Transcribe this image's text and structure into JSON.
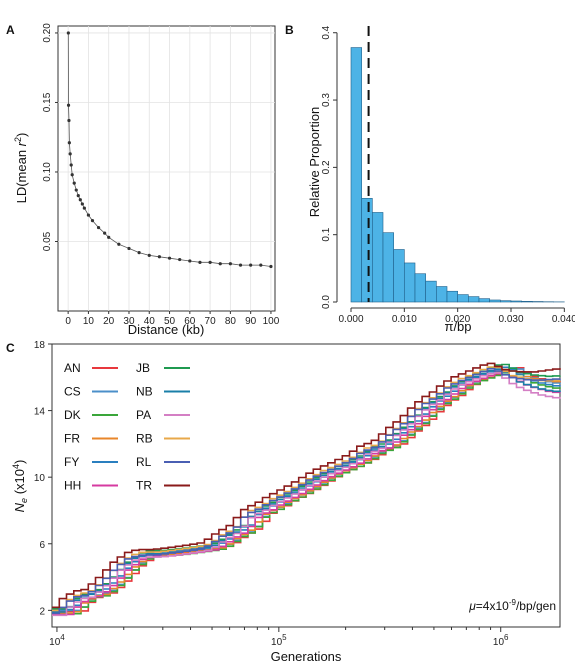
{
  "panels": {
    "A": {
      "letter": "A",
      "chart_data": {
        "type": "scatter",
        "title": "",
        "xlabel": "Distance (kb)",
        "ylabel": "LD(mean r²)",
        "ylabel_prefix": "LD(mean ",
        "ylabel_r": "r",
        "ylabel_sup": "2",
        "ylabel_suffix": ")",
        "xlim": [
          -5,
          102
        ],
        "ylim": [
          0.0,
          0.205
        ],
        "xticks": [
          0,
          10,
          20,
          30,
          40,
          50,
          60,
          70,
          80,
          90,
          100
        ],
        "xtick_labels": [
          "0",
          "10",
          "20",
          "30",
          "40",
          "50",
          "60",
          "70",
          "80",
          "90",
          "100"
        ],
        "yticks": [
          0.05,
          0.1,
          0.15,
          0.2
        ],
        "ytick_labels": [
          "0.05",
          "0.10",
          "0.15",
          "0.20"
        ],
        "grid": true,
        "series": [
          {
            "x": [
              0.1,
              0.2,
              0.4,
              0.6,
              1.0,
              1.5,
              2.0,
              3.0,
              4.0,
              5.0,
              6.0,
              7.0,
              8.0,
              10.0,
              12.0,
              15.0,
              18.0,
              20.0,
              25.0,
              30.0,
              35.0,
              40.0,
              45.0,
              50.0,
              55.0,
              60.0,
              65.0,
              70.0,
              75.0,
              80.0,
              85.0,
              90.0,
              95.0,
              100.0
            ],
            "y": [
              0.2,
              0.148,
              0.137,
              0.121,
              0.113,
              0.105,
              0.098,
              0.092,
              0.087,
              0.083,
              0.08,
              0.077,
              0.074,
              0.069,
              0.065,
              0.06,
              0.056,
              0.053,
              0.048,
              0.045,
              0.042,
              0.04,
              0.039,
              0.038,
              0.037,
              0.036,
              0.035,
              0.035,
              0.034,
              0.034,
              0.033,
              0.033,
              0.033,
              0.032
            ],
            "color": "#333333"
          }
        ],
        "annotations": []
      }
    },
    "B": {
      "letter": "B",
      "chart_data": {
        "type": "bar",
        "title": "",
        "xlabel": "π/bp",
        "ylabel": "Relative Proportion",
        "xlim": [
          -0.0015,
          0.0405
        ],
        "ylim": [
          0.0,
          0.41
        ],
        "xticks": [
          0.0,
          0.01,
          0.02,
          0.03,
          0.04
        ],
        "xtick_labels": [
          "0.000",
          "0.010",
          "0.020",
          "0.030",
          "0.040"
        ],
        "yticks": [
          0.0,
          0.1,
          0.2,
          0.3,
          0.4
        ],
        "ytick_labels": [
          "0.0",
          "0.1",
          "0.2",
          "0.3",
          "0.4"
        ],
        "grid": false,
        "bin_width": 0.002,
        "bin_starts": [
          0.0,
          0.002,
          0.004,
          0.006,
          0.008,
          0.01,
          0.012,
          0.014,
          0.016,
          0.018,
          0.02,
          0.022,
          0.024,
          0.026,
          0.028,
          0.03,
          0.032,
          0.034,
          0.036,
          0.038
        ],
        "values": [
          0.378,
          0.154,
          0.133,
          0.103,
          0.078,
          0.058,
          0.042,
          0.031,
          0.023,
          0.016,
          0.011,
          0.008,
          0.005,
          0.003,
          0.002,
          0.0015,
          0.001,
          0.0007,
          0.0004,
          0.0002
        ],
        "bar_color": "#4db3e6",
        "bar_edge": "#1f5f8a",
        "vline": {
          "x": 0.0033,
          "style": "dashed",
          "color": "#111111"
        }
      }
    },
    "C": {
      "letter": "C",
      "chart_data": {
        "type": "line",
        "title": "",
        "xlabel": "Generations",
        "ylabel": "Ne (×10⁴)",
        "ylabel_n": "N",
        "ylabel_sub": "e",
        "ylabel_mid": " (x10",
        "ylabel_sup": "4",
        "ylabel_end": ")",
        "xscale": "log",
        "xlim": [
          9500,
          1850000
        ],
        "ylim": [
          1.0,
          18.0
        ],
        "xticks": [
          10000,
          100000,
          1000000
        ],
        "xtick_base": "10",
        "xtick_exps": [
          "4",
          "5",
          "6"
        ],
        "yticks": [
          2,
          6,
          10,
          14,
          18
        ],
        "ytick_labels": [
          "2",
          "6",
          "10",
          "14",
          "18"
        ],
        "grid": false,
        "annotation": {
          "mu": "μ",
          "eq": "=4x10",
          "sup": "-9",
          "rest": "/bp/gen"
        },
        "base_curve": {
          "x": [
            9500,
            11000,
            12000,
            13500,
            15000,
            17000,
            18500,
            20000,
            23000,
            26000,
            30000,
            35000,
            40000,
            45000,
            50000,
            55000,
            60000,
            65000,
            70000,
            75000,
            80000,
            90000,
            100000,
            115000,
            130000,
            150000,
            170000,
            200000,
            230000,
            260000,
            300000,
            350000,
            400000,
            450000,
            500000,
            560000,
            620000,
            700000,
            800000,
            900000,
            1000000,
            1200000,
            1400000,
            1600000,
            1850000
          ],
          "y": [
            1.9,
            1.9,
            2.5,
            2.9,
            3.0,
            3.6,
            4.1,
            4.6,
            5.2,
            5.4,
            5.4,
            5.5,
            5.6,
            5.7,
            5.8,
            6.1,
            6.5,
            6.7,
            7.0,
            7.6,
            7.9,
            8.2,
            8.6,
            9.0,
            9.4,
            9.9,
            10.3,
            10.7,
            11.1,
            11.6,
            11.9,
            12.7,
            13.3,
            14.0,
            14.5,
            14.9,
            15.4,
            15.8,
            16.1,
            16.4,
            16.6,
            16.0,
            15.8,
            15.7,
            15.7
          ]
        },
        "series": [
          {
            "name": "AN",
            "color": "#e8383d",
            "offset": 0.05,
            "end": -0.1
          },
          {
            "name": "CS",
            "color": "#4b8fc9",
            "offset": 0.1,
            "end": -0.2
          },
          {
            "name": "DK",
            "color": "#3aa63a",
            "offset": -0.1,
            "end": -0.3
          },
          {
            "name": "FR",
            "color": "#e8862a",
            "offset": -0.05,
            "end": 0.1
          },
          {
            "name": "FY",
            "color": "#2a7fbf",
            "offset": 0.15,
            "end": -0.4
          },
          {
            "name": "HH",
            "color": "#d63aa0",
            "offset": -0.15,
            "end": -0.5
          },
          {
            "name": "JB",
            "color": "#1f9a50",
            "offset": 0.2,
            "end": 0.2
          },
          {
            "name": "NB",
            "color": "#1a7fa8",
            "offset": 0.0,
            "end": -0.6
          },
          {
            "name": "PA",
            "color": "#d47fc4",
            "offset": -0.2,
            "end": -0.8
          },
          {
            "name": "RB",
            "color": "#e8a84a",
            "offset": 0.1,
            "end": 0.0
          },
          {
            "name": "RL",
            "color": "#4a5fb3",
            "offset": -0.08,
            "end": 0.3
          },
          {
            "name": "TR",
            "color": "#8a1a1a",
            "offset": 0.25,
            "end": 0.6
          }
        ]
      }
    }
  }
}
